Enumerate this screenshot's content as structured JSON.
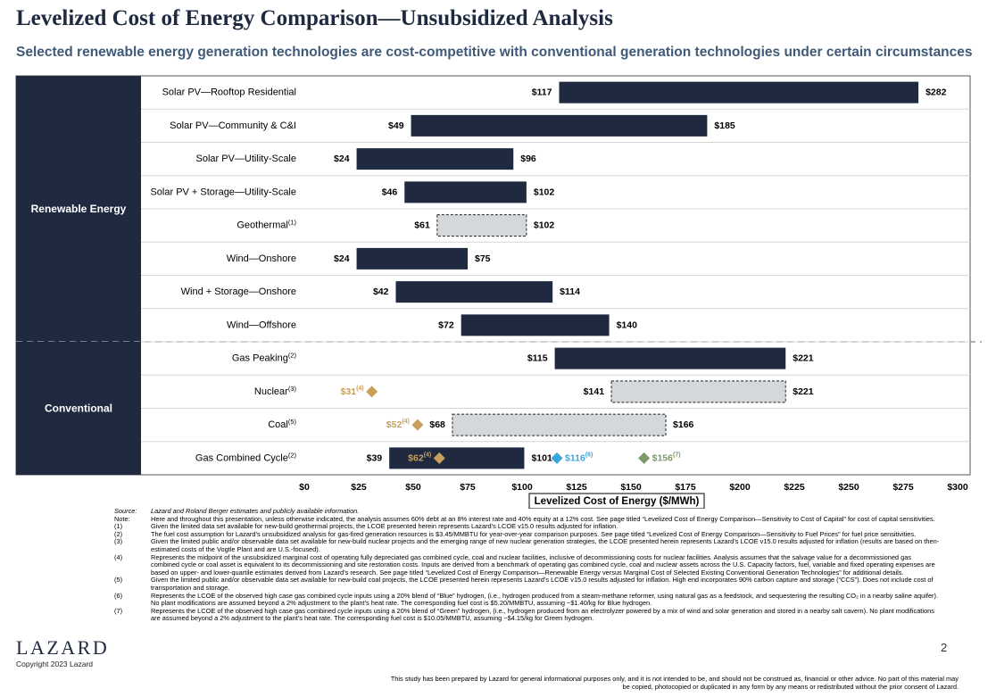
{
  "header": {
    "title": "Levelized Cost of Energy Comparison—Unsubsidized Analysis",
    "subtitle": "Selected renewable energy generation technologies are cost-competitive with conventional generation technologies under certain circumstances"
  },
  "colors": {
    "bar": "#1f2940",
    "dashed_fill": "#d5d8db",
    "gold": "#c9a05a",
    "blue": "#3aa6dc",
    "green": "#7a9a66"
  },
  "chart_data": {
    "type": "bar",
    "orientation": "horizontal-range",
    "xlabel": "Levelized Cost of Energy ($/MWh)",
    "xlim": [
      0,
      300
    ],
    "xticks": [
      0,
      25,
      50,
      75,
      100,
      125,
      150,
      175,
      200,
      225,
      250,
      275,
      300
    ],
    "xtick_labels": [
      "$0",
      "$25",
      "$50",
      "$75",
      "$100",
      "$125",
      "$150",
      "$175",
      "$200",
      "$225",
      "$250",
      "$275",
      "$300"
    ],
    "groups": [
      {
        "label": "Renewable Energy",
        "rows": 8
      },
      {
        "label": "Conventional",
        "rows": 4
      }
    ],
    "categories": [
      {
        "label": "Solar PV—Rooftop Residential",
        "sup": "",
        "low": 117,
        "high": 282,
        "low_label": "$117",
        "high_label": "$282",
        "style": "solid"
      },
      {
        "label": "Solar PV—Community & C&I",
        "sup": "",
        "low": 49,
        "high": 185,
        "low_label": "$49",
        "high_label": "$185",
        "style": "solid"
      },
      {
        "label": "Solar PV—Utility-Scale",
        "sup": "",
        "low": 24,
        "high": 96,
        "low_label": "$24",
        "high_label": "$96",
        "style": "solid"
      },
      {
        "label": "Solar PV + Storage—Utility-Scale",
        "sup": "",
        "low": 46,
        "high": 102,
        "low_label": "$46",
        "high_label": "$102",
        "style": "solid"
      },
      {
        "label": "Geothermal",
        "sup": "(1)",
        "low": 61,
        "high": 102,
        "low_label": "$61",
        "high_label": "$102",
        "style": "dashed"
      },
      {
        "label": "Wind—Onshore",
        "sup": "",
        "low": 24,
        "high": 75,
        "low_label": "$24",
        "high_label": "$75",
        "style": "solid"
      },
      {
        "label": "Wind + Storage—Onshore",
        "sup": "",
        "low": 42,
        "high": 114,
        "low_label": "$42",
        "high_label": "$114",
        "style": "solid"
      },
      {
        "label": "Wind—Offshore",
        "sup": "",
        "low": 72,
        "high": 140,
        "low_label": "$72",
        "high_label": "$140",
        "style": "solid"
      },
      {
        "label": "Gas Peaking",
        "sup": "(2)",
        "low": 115,
        "high": 221,
        "low_label": "$115",
        "high_label": "$221",
        "style": "solid"
      },
      {
        "label": "Nuclear",
        "sup": "(3)",
        "low": 141,
        "high": 221,
        "low_label": "$141",
        "high_label": "$221",
        "style": "dashed"
      },
      {
        "label": "Coal",
        "sup": "(5)",
        "low": 68,
        "high": 166,
        "low_label": "$68",
        "high_label": "$166",
        "style": "dashed"
      },
      {
        "label": "Gas Combined Cycle",
        "sup": "(2)",
        "low": 39,
        "high": 101,
        "low_label": "$39",
        "high_label": "$101",
        "style": "solid"
      }
    ],
    "markers": [
      {
        "row": 9,
        "value": 31,
        "label": "$31",
        "sup": "(4)",
        "color": "gold",
        "label_side": "left"
      },
      {
        "row": 10,
        "value": 52,
        "label": "$52",
        "sup": "(4)",
        "color": "gold",
        "label_side": "left"
      },
      {
        "row": 11,
        "value": 62,
        "label": "$62",
        "sup": "(4)",
        "color": "gold",
        "label_side": "left"
      },
      {
        "row": 11,
        "value": 116,
        "label": "$116",
        "sup": "(6)",
        "color": "blue",
        "label_side": "right"
      },
      {
        "row": 11,
        "value": 156,
        "label": "$156",
        "sup": "(7)",
        "color": "green",
        "label_side": "right"
      }
    ]
  },
  "notes": {
    "source_key": "Source:",
    "source_text": "Lazard and Roland Berger estimates and publicly available information.",
    "items": [
      {
        "key": "Note:",
        "text": "Here and throughout this presentation, unless otherwise indicated, the analysis assumes 60% debt at an 8% interest rate and 40% equity at a 12% cost. See page titled “Levelized Cost of Energy Comparison—Sensitivity to Cost of Capital” for cost of capital sensitivities."
      },
      {
        "key": "(1)",
        "text": "Given the limited data set available for new-build geothermal projects, the LCOE presented herein represents Lazard’s LCOE v15.0 results adjusted for inflation."
      },
      {
        "key": "(2)",
        "text": "The fuel cost assumption for Lazard’s unsubsidized analysis for gas-fired generation resources is $3.45/MMBTU for year-over-year comparison purposes. See page titled “Levelized Cost of Energy Comparison—Sensitivity to Fuel Prices” for fuel price sensitivities."
      },
      {
        "key": "(3)",
        "text": "Given the limited public and/or observable data set available for new-build nuclear projects and the emerging range of new nuclear generation strategies, the LCOE presented herein represents Lazard’s LCOE v15.0 results adjusted for inflation (results are based on then-estimated costs of the Vogtle Plant and are U.S.-focused)."
      },
      {
        "key": "(4)",
        "text": "Represents the midpoint of the unsubsidized marginal cost of operating fully depreciated gas combined cycle, coal and nuclear facilities, inclusive of decommissioning costs for nuclear facilities. Analysis assumes that the salvage value for a decommissioned gas combined cycle or coal asset is equivalent to its decommissioning and site restoration costs. Inputs are derived from a benchmark of operating gas combined cycle, coal and nuclear assets across the U.S. Capacity factors, fuel, variable and fixed operating expenses are based on upper- and lower-quartile estimates derived from Lazard’s research. See page titled “Levelized Cost of Energy Comparison—Renewable Energy versus Marginal Cost of Selected Existing Conventional Generation Technologies” for additional details."
      },
      {
        "key": "(5)",
        "text": "Given the limited public and/or observable data set available for new-build coal projects, the LCOE presented herein represents Lazard’s LCOE v15.0 results adjusted for inflation. High end incorporates 90% carbon capture and storage (“CCS”). Does not include cost of transportation and storage."
      },
      {
        "key": "(6)",
        "text": "Represents the LCOE of the observed high case gas combined cycle inputs using a 20% blend of “Blue” hydrogen, (i.e., hydrogen produced from a steam-methane reformer, using natural gas as a feedstock, and sequestering the resulting CO₂ in a nearby saline aquifer). No plant modifications are assumed beyond a 2% adjustment to the plant’s heat rate. The corresponding fuel cost is $5.20/MMBTU, assuming ~$1.40/kg for Blue hydrogen."
      },
      {
        "key": "(7)",
        "text": "Represents the LCOE of the observed high case gas combined cycle inputs using a 20% blend of “Green” hydrogen, (i.e., hydrogen produced from an electrolyzer powered by a mix of wind and solar generation and stored in a nearby salt cavern). No plant modifications are assumed beyond a 2% adjustment to the plant’s heat rate. The corresponding fuel cost is $10.05/MMBTU, assuming ~$4.15/kg for Green hydrogen."
      }
    ],
    "disclaimer": "This study has been prepared by Lazard for general informational purposes only, and it is not intended to be, and should not be construed as, financial or other advice. No part of this material may be copied, photocopied or duplicated in any form by any means or redistributed without the prior consent of Lazard."
  },
  "footer": {
    "logo": "LAZARD",
    "copyright": "Copyright 2023 Lazard",
    "page_number": "2"
  }
}
